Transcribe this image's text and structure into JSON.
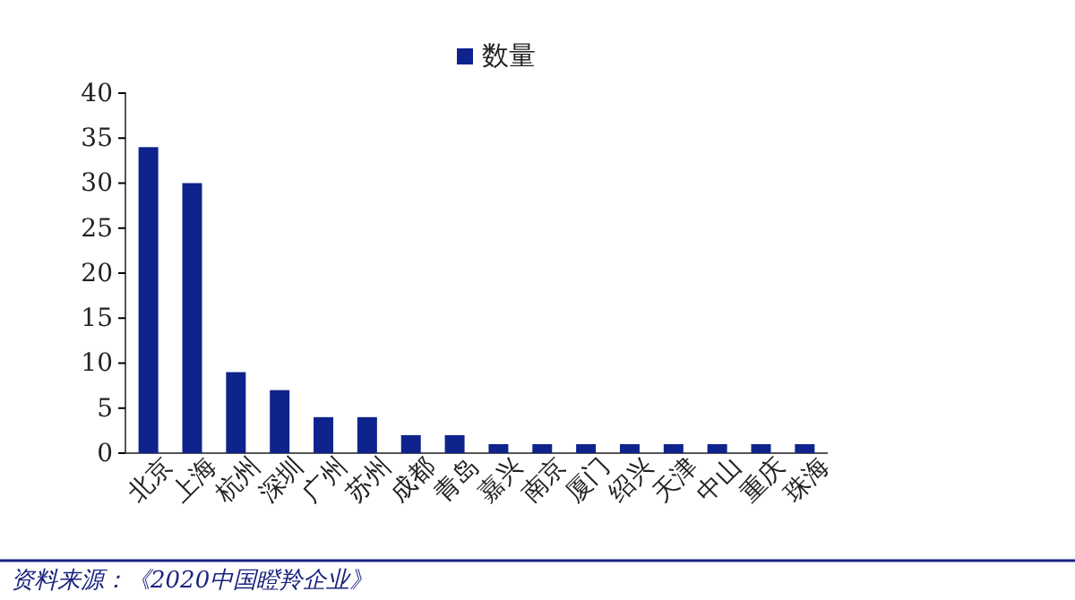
{
  "chart_data": {
    "type": "bar",
    "categories": [
      "北京",
      "上海",
      "杭州",
      "深圳",
      "广州",
      "苏州",
      "成都",
      "青岛",
      "嘉兴",
      "南京",
      "厦门",
      "绍兴",
      "天津",
      "中山",
      "重庆",
      "珠海"
    ],
    "series": [
      {
        "name": "数量",
        "color": "#0f238c",
        "values": [
          34,
          30,
          9,
          7,
          4,
          4,
          2,
          2,
          1,
          1,
          1,
          1,
          1,
          1,
          1,
          1
        ]
      }
    ],
    "ylim": [
      0,
      40
    ],
    "yticks": [
      0,
      5,
      10,
      15,
      20,
      25,
      30,
      35,
      40
    ],
    "grid": false,
    "legend": "top",
    "annotations": [
      "资料来源：《2020中国瞪羚企业》"
    ]
  }
}
